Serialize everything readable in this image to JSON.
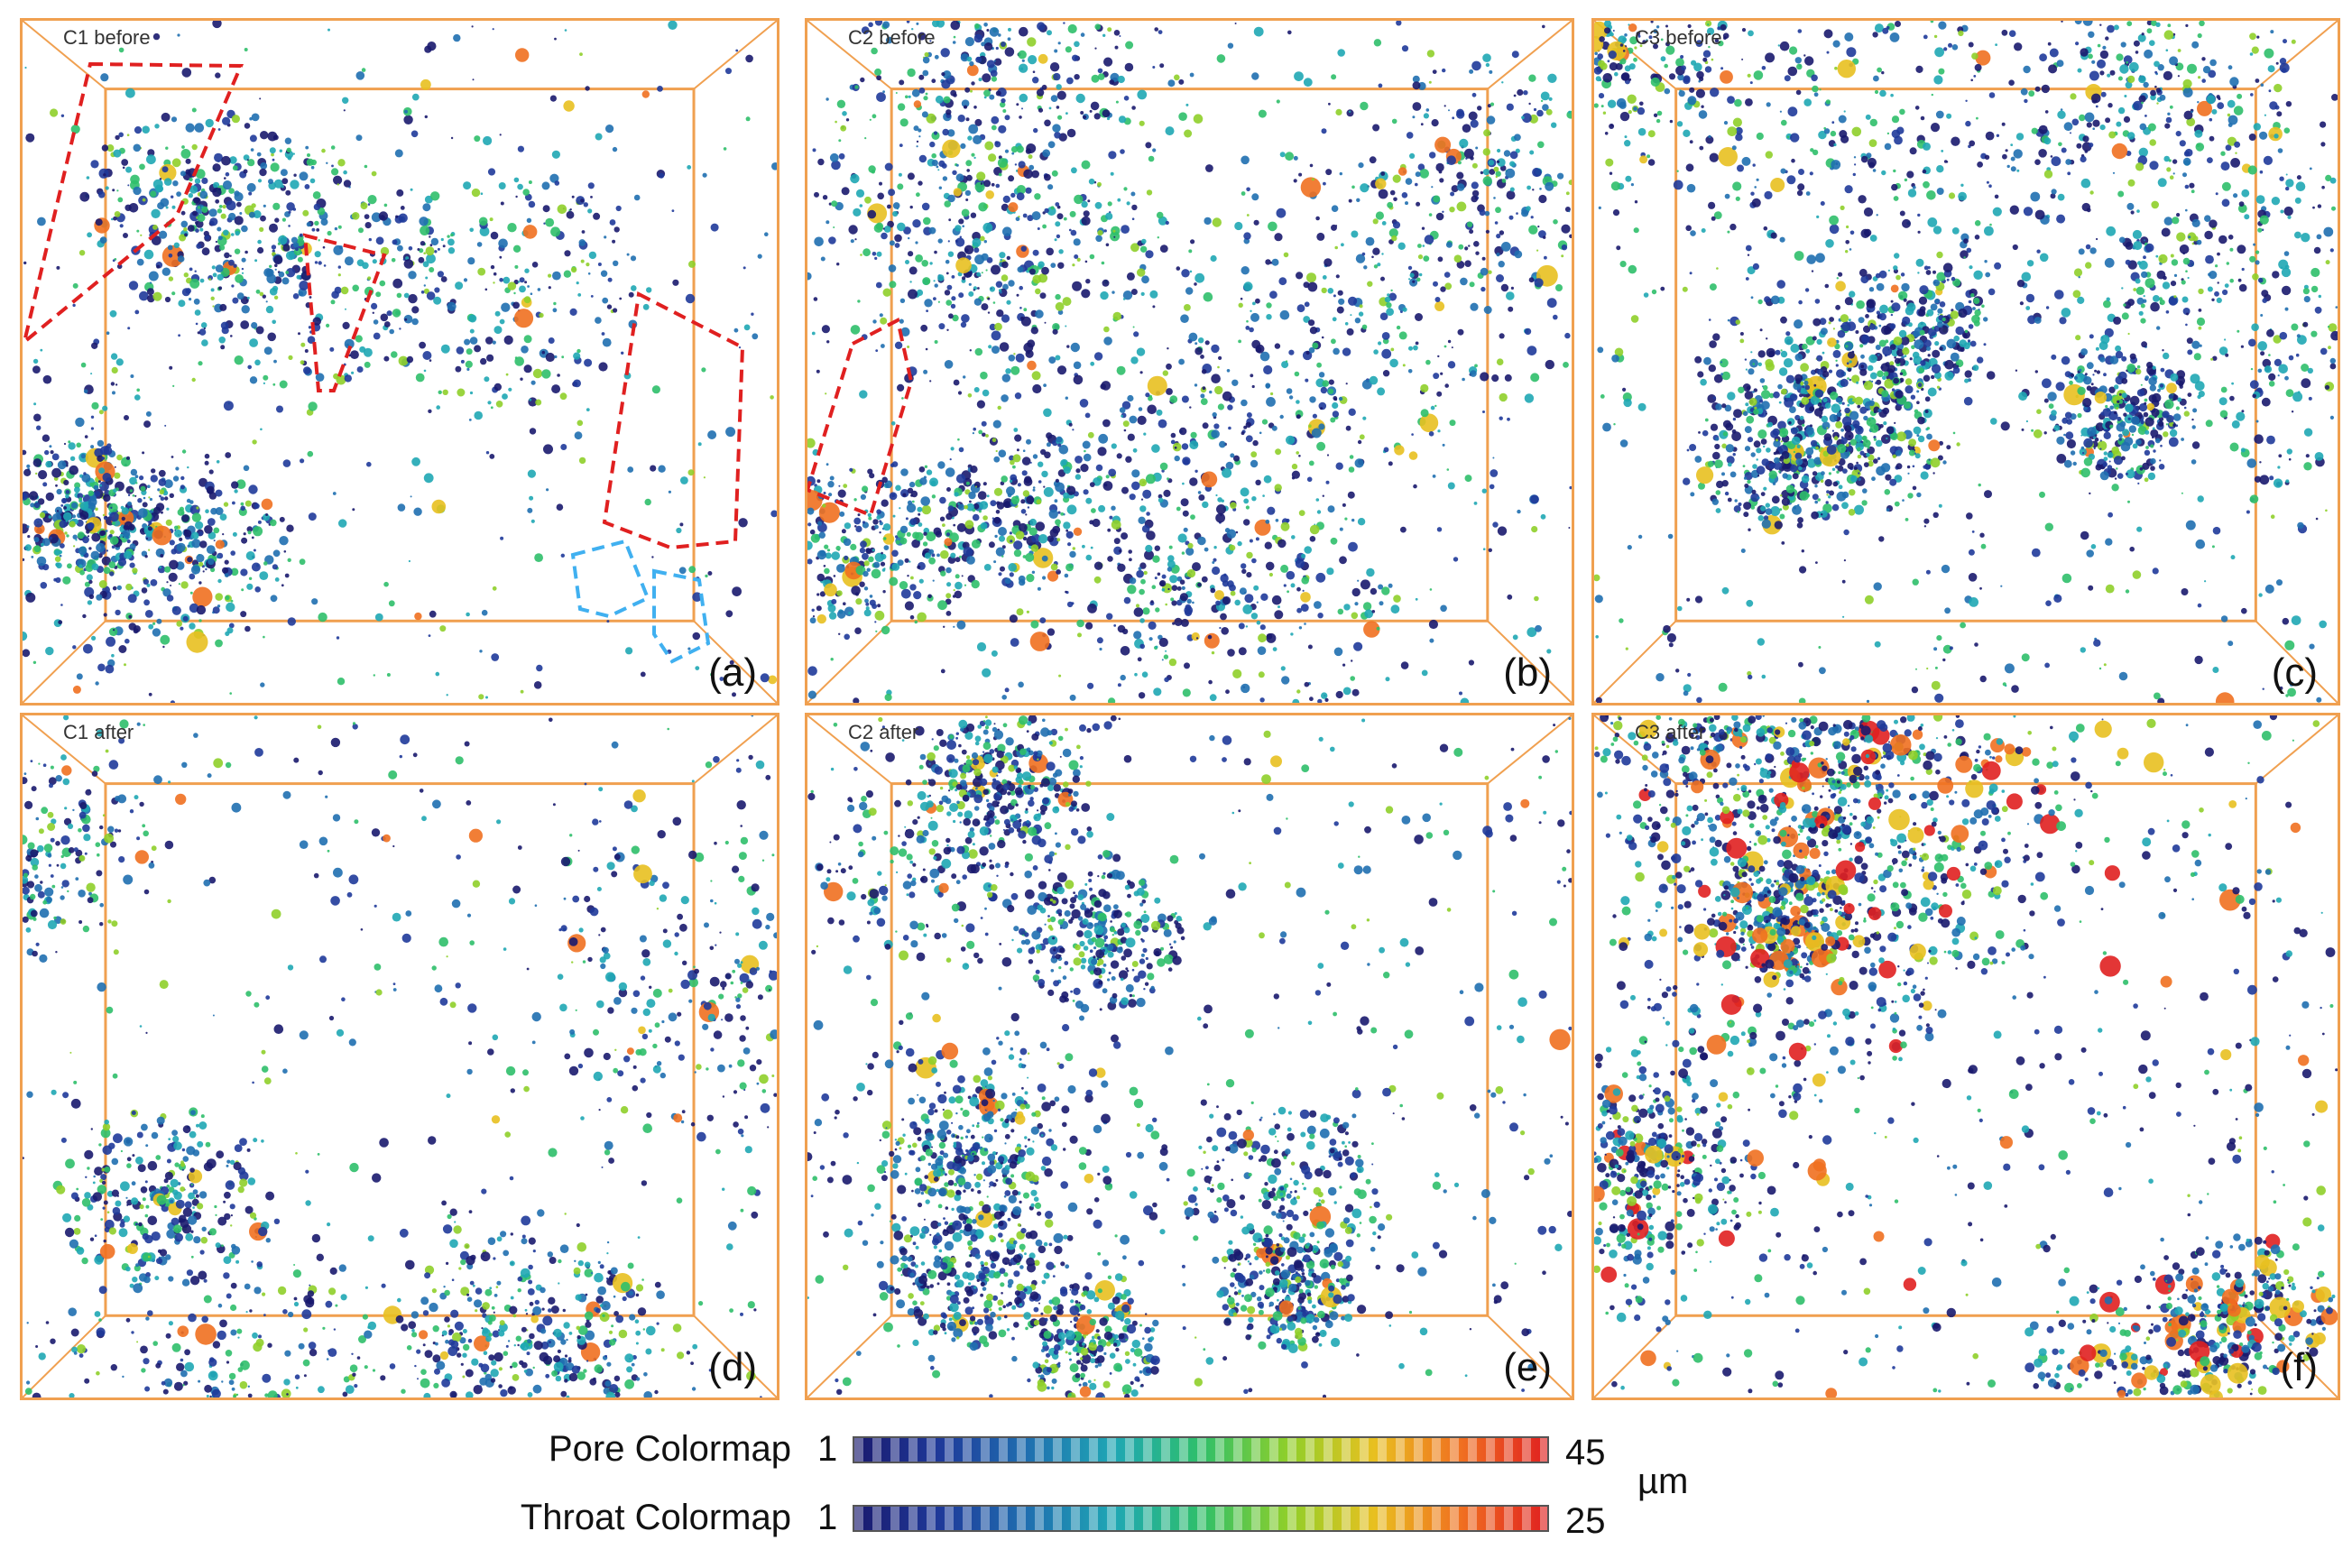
{
  "panels": [
    {
      "id": "a",
      "title": "C1 before",
      "label": "(a)"
    },
    {
      "id": "b",
      "title": "C2 before",
      "label": "(b)"
    },
    {
      "id": "c",
      "title": "C3 before",
      "label": "(c)"
    },
    {
      "id": "d",
      "title": "C1 after",
      "label": "(d)"
    },
    {
      "id": "e",
      "title": "C2 after",
      "label": "(e)"
    },
    {
      "id": "f",
      "title": "C3 after",
      "label": "(f)"
    }
  ],
  "legend": {
    "pore_label": "Pore Colormap",
    "pore_min": "1",
    "pore_max": "45",
    "throat_label": "Throat Colormap",
    "throat_min": "1",
    "throat_max": "25",
    "unit": "µm"
  },
  "colors": {
    "frame": "#f0a050",
    "highlight_red": "#e02020",
    "highlight_blue": "#40b0f0",
    "colormap": [
      "#1a1a6e",
      "#1f3a9a",
      "#1f6fb0",
      "#1fa7b4",
      "#2fbf6a",
      "#8fcf2a",
      "#e8c020",
      "#f07020",
      "#e02020"
    ]
  }
}
